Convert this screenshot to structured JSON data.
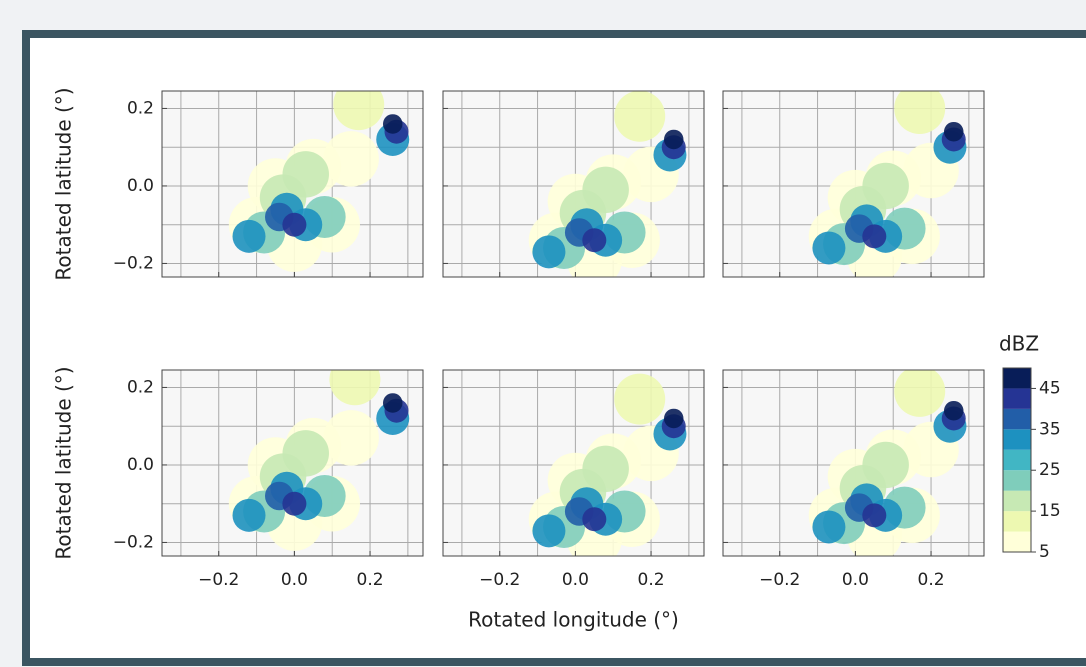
{
  "chart_data": [
    {
      "type": "scatter",
      "ylabel": "Rotated latitude (°)",
      "xlim": [
        -0.35,
        0.34
      ],
      "ylim": [
        -0.235,
        0.245
      ],
      "xticks": [
        {
          "value": -0.2,
          "label": "−0.2"
        },
        {
          "value": 0,
          "label": "0.0"
        },
        0.2
      ],
      "xgrid": [
        -0.3,
        -0.1,
        0.1,
        0.3
      ],
      "yticks": [
        {
          "value": -0.2,
          "label": "−0.2"
        },
        {
          "value": 0,
          "label": "0.0"
        },
        0.2
      ],
      "ygrid": [
        -0.1,
        0.1
      ],
      "grid": true,
      "x": [
        -0.05,
        0.05,
        -0.1,
        0.1,
        0.0,
        0.15,
        0.17,
        -0.03,
        0.03,
        -0.08,
        0.08,
        -0.02,
        0.03,
        -0.12,
        -0.04,
        0.0,
        0.26,
        0.27,
        0.26
      ],
      "y": [
        0.0,
        0.05,
        -0.1,
        -0.1,
        -0.15,
        0.07,
        0.21,
        -0.03,
        0.03,
        -0.12,
        -0.08,
        -0.06,
        -0.1,
        -0.13,
        -0.08,
        -0.1,
        0.12,
        0.14,
        0.16
      ],
      "values": [
        5,
        5,
        5,
        5,
        5,
        5,
        10,
        15,
        15,
        20,
        20,
        30,
        30,
        30,
        35,
        40,
        30,
        40,
        45
      ]
    },
    {
      "type": "scatter",
      "xlim": [
        -0.35,
        0.34
      ],
      "ylim": [
        -0.235,
        0.245
      ],
      "xticks": [
        {
          "value": -0.2,
          "label": "−0.2"
        },
        {
          "value": 0,
          "label": "0.0"
        },
        0.2
      ],
      "xgrid": [
        -0.3,
        -0.1,
        0.1,
        0.3
      ],
      "yticks": [
        {
          "value": -0.2,
          "label": "−0.2"
        },
        {
          "value": 0,
          "label": "0.0"
        },
        0.2
      ],
      "ygrid": [
        -0.1,
        0.1
      ],
      "grid": true,
      "x": [
        0.0,
        0.1,
        -0.05,
        0.15,
        0.05,
        0.2,
        0.17,
        0.02,
        0.08,
        -0.03,
        0.13,
        0.03,
        0.08,
        -0.07,
        0.01,
        0.05,
        0.25,
        0.26,
        0.26
      ],
      "y": [
        -0.04,
        0.01,
        -0.14,
        -0.14,
        -0.19,
        0.03,
        0.18,
        -0.07,
        -0.01,
        -0.16,
        -0.12,
        -0.1,
        -0.14,
        -0.17,
        -0.12,
        -0.14,
        0.08,
        0.1,
        0.12
      ],
      "values": [
        5,
        5,
        5,
        5,
        5,
        5,
        10,
        15,
        15,
        20,
        20,
        30,
        30,
        30,
        35,
        40,
        30,
        40,
        45
      ]
    },
    {
      "type": "scatter",
      "xlim": [
        -0.35,
        0.34
      ],
      "ylim": [
        -0.235,
        0.245
      ],
      "xticks": [
        {
          "value": -0.2,
          "label": "−0.2"
        },
        {
          "value": 0,
          "label": "0.0"
        },
        0.2
      ],
      "xgrid": [
        -0.3,
        -0.1,
        0.1,
        0.3
      ],
      "yticks": [
        {
          "value": -0.2,
          "label": "−0.2"
        },
        {
          "value": 0,
          "label": "0.0"
        },
        0.2
      ],
      "ygrid": [
        -0.1,
        0.1
      ],
      "grid": true,
      "x": [
        0.0,
        0.1,
        -0.05,
        0.15,
        0.05,
        0.2,
        0.17,
        0.02,
        0.08,
        -0.03,
        0.13,
        0.03,
        0.08,
        -0.07,
        0.01,
        0.05,
        0.25,
        0.26,
        0.26
      ],
      "y": [
        -0.03,
        0.02,
        -0.13,
        -0.13,
        -0.18,
        0.04,
        0.2,
        -0.06,
        0.0,
        -0.15,
        -0.11,
        -0.09,
        -0.13,
        -0.16,
        -0.11,
        -0.13,
        0.1,
        0.12,
        0.14
      ],
      "values": [
        5,
        5,
        5,
        5,
        5,
        5,
        10,
        15,
        15,
        20,
        20,
        30,
        30,
        30,
        35,
        40,
        30,
        40,
        45
      ]
    },
    {
      "type": "scatter",
      "ylabel": "Rotated latitude (°)",
      "xlim": [
        -0.35,
        0.34
      ],
      "ylim": [
        -0.235,
        0.245
      ],
      "xticks": [
        {
          "value": -0.2,
          "label": "−0.2"
        },
        {
          "value": 0,
          "label": "0.0"
        },
        0.2
      ],
      "xgrid": [
        -0.3,
        -0.1,
        0.1,
        0.3
      ],
      "yticks": [
        {
          "value": -0.2,
          "label": "−0.2"
        },
        {
          "value": 0,
          "label": "0.0"
        },
        0.2
      ],
      "ygrid": [
        -0.1,
        0.1
      ],
      "grid": true,
      "x": [
        -0.05,
        0.05,
        -0.1,
        0.1,
        0.0,
        0.15,
        0.16,
        -0.03,
        0.03,
        -0.08,
        0.08,
        -0.02,
        0.03,
        -0.12,
        -0.04,
        0.0,
        0.26,
        0.27,
        0.26
      ],
      "y": [
        0.0,
        0.05,
        -0.1,
        -0.1,
        -0.15,
        0.07,
        0.22,
        -0.03,
        0.03,
        -0.12,
        -0.08,
        -0.06,
        -0.1,
        -0.13,
        -0.08,
        -0.1,
        0.12,
        0.14,
        0.16
      ],
      "values": [
        5,
        5,
        5,
        5,
        5,
        5,
        10,
        15,
        15,
        20,
        20,
        30,
        30,
        30,
        35,
        40,
        30,
        40,
        45
      ]
    },
    {
      "type": "scatter",
      "xlabel": "Rotated longitude (°)",
      "xlim": [
        -0.35,
        0.34
      ],
      "ylim": [
        -0.235,
        0.245
      ],
      "xticks": [
        {
          "value": -0.2,
          "label": "−0.2"
        },
        {
          "value": 0,
          "label": "0.0"
        },
        0.2
      ],
      "xgrid": [
        -0.3,
        -0.1,
        0.1,
        0.3
      ],
      "yticks": [
        {
          "value": -0.2,
          "label": "−0.2"
        },
        {
          "value": 0,
          "label": "0.0"
        },
        0.2
      ],
      "ygrid": [
        -0.1,
        0.1
      ],
      "grid": true,
      "x": [
        0.0,
        0.1,
        -0.05,
        0.15,
        0.05,
        0.2,
        0.17,
        0.02,
        0.08,
        -0.03,
        0.13,
        0.03,
        0.08,
        -0.07,
        0.01,
        0.05,
        0.25,
        0.26,
        0.26
      ],
      "y": [
        -0.04,
        0.01,
        -0.14,
        -0.14,
        -0.19,
        0.03,
        0.17,
        -0.07,
        -0.01,
        -0.16,
        -0.12,
        -0.1,
        -0.14,
        -0.17,
        -0.12,
        -0.14,
        0.08,
        0.1,
        0.12
      ],
      "values": [
        5,
        5,
        5,
        5,
        5,
        5,
        10,
        15,
        15,
        20,
        20,
        30,
        30,
        30,
        35,
        40,
        30,
        40,
        45
      ]
    },
    {
      "type": "scatter",
      "xlim": [
        -0.35,
        0.34
      ],
      "ylim": [
        -0.235,
        0.245
      ],
      "xticks": [
        {
          "value": -0.2,
          "label": "−0.2"
        },
        {
          "value": 0,
          "label": "0.0"
        },
        0.2
      ],
      "xgrid": [
        -0.3,
        -0.1,
        0.1,
        0.3
      ],
      "yticks": [
        {
          "value": -0.2,
          "label": "−0.2"
        },
        {
          "value": 0,
          "label": "0.0"
        },
        0.2
      ],
      "ygrid": [
        -0.1,
        0.1
      ],
      "grid": true,
      "x": [
        0.0,
        0.1,
        -0.05,
        0.15,
        0.05,
        0.2,
        0.17,
        0.02,
        0.08,
        -0.03,
        0.13,
        0.03,
        0.08,
        -0.07,
        0.01,
        0.05,
        0.25,
        0.26,
        0.26
      ],
      "y": [
        -0.03,
        0.02,
        -0.13,
        -0.13,
        -0.18,
        0.04,
        0.19,
        -0.06,
        0.0,
        -0.15,
        -0.11,
        -0.09,
        -0.13,
        -0.16,
        -0.11,
        -0.13,
        0.1,
        0.12,
        0.14
      ],
      "values": [
        5,
        5,
        5,
        5,
        5,
        5,
        10,
        15,
        15,
        20,
        20,
        30,
        30,
        30,
        35,
        40,
        30,
        40,
        45
      ]
    }
  ],
  "colorbar": {
    "label": "dBZ",
    "levels": [
      5,
      10,
      15,
      20,
      25,
      30,
      35,
      40,
      45,
      50
    ],
    "colors": [
      "#ffffd9",
      "#edf8b1",
      "#c7e9b4",
      "#7fcdbb",
      "#41b6c4",
      "#1d91c0",
      "#225ea8",
      "#253494",
      "#081d58"
    ],
    "ticks": [
      5,
      15,
      25,
      35,
      45
    ]
  }
}
